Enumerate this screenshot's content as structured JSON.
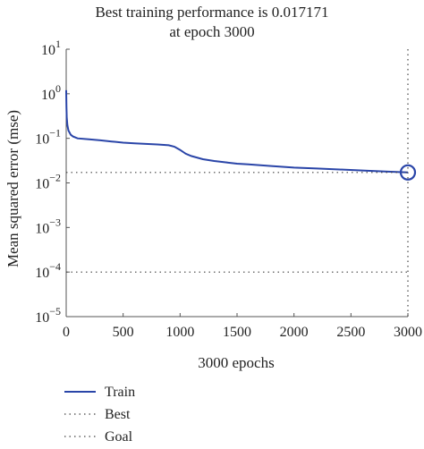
{
  "chart_data": {
    "type": "line",
    "title": [
      "Best training performance is 0.017171",
      "at epoch 3000"
    ],
    "xlabel": "3000 epochs",
    "ylabel": "Mean squared error (mse)",
    "xlim": [
      0,
      3000
    ],
    "ylim": [
      1e-05,
      10
    ],
    "yscale": "log",
    "grid": false,
    "legend_placement": "below",
    "x_ticks": [
      {
        "value": 0,
        "label": "0"
      },
      {
        "value": 500,
        "label": "500"
      },
      {
        "value": 1000,
        "label": "1000"
      },
      {
        "value": 1500,
        "label": "1500"
      },
      {
        "value": 2000,
        "label": "2000"
      },
      {
        "value": 2500,
        "label": "2500"
      },
      {
        "value": 3000,
        "label": "3000"
      }
    ],
    "y_ticks": [
      {
        "value": 10,
        "base": "10",
        "exp": "1"
      },
      {
        "value": 1,
        "base": "10",
        "exp": "0"
      },
      {
        "value": 0.1,
        "base": "10",
        "exp": "−1"
      },
      {
        "value": 0.01,
        "base": "10",
        "exp": "−2"
      },
      {
        "value": 0.001,
        "base": "10",
        "exp": "−3"
      },
      {
        "value": 0.0001,
        "base": "10",
        "exp": "−4"
      },
      {
        "value": 1e-05,
        "base": "10",
        "exp": "−5"
      }
    ],
    "series": [
      {
        "name": "Train",
        "style": "solid",
        "color": "#2a45a8",
        "x": [
          0,
          2,
          5,
          10,
          20,
          40,
          60,
          100,
          200,
          300,
          400,
          500,
          600,
          700,
          800,
          900,
          950,
          1000,
          1050,
          1100,
          1200,
          1300,
          1400,
          1500,
          1600,
          1800,
          2000,
          2200,
          2400,
          2600,
          2800,
          3000
        ],
        "y": [
          1.2,
          0.5,
          0.3,
          0.2,
          0.15,
          0.12,
          0.11,
          0.1,
          0.095,
          0.09,
          0.085,
          0.08,
          0.077,
          0.075,
          0.073,
          0.07,
          0.065,
          0.055,
          0.045,
          0.04,
          0.034,
          0.031,
          0.029,
          0.027,
          0.026,
          0.024,
          0.022,
          0.021,
          0.02,
          0.019,
          0.018,
          0.017171
        ]
      },
      {
        "name": "Best",
        "style": "dotted",
        "color": "#444444",
        "x": [
          0,
          3000
        ],
        "y": [
          0.017171,
          0.017171
        ]
      },
      {
        "name": "Goal",
        "style": "dotted",
        "color": "#444444",
        "x": [
          0,
          3000
        ],
        "y": [
          0.0001,
          0.0001
        ]
      }
    ],
    "best_marker": {
      "x": 3000,
      "y": 0.017171,
      "color": "#2a45a8"
    }
  }
}
